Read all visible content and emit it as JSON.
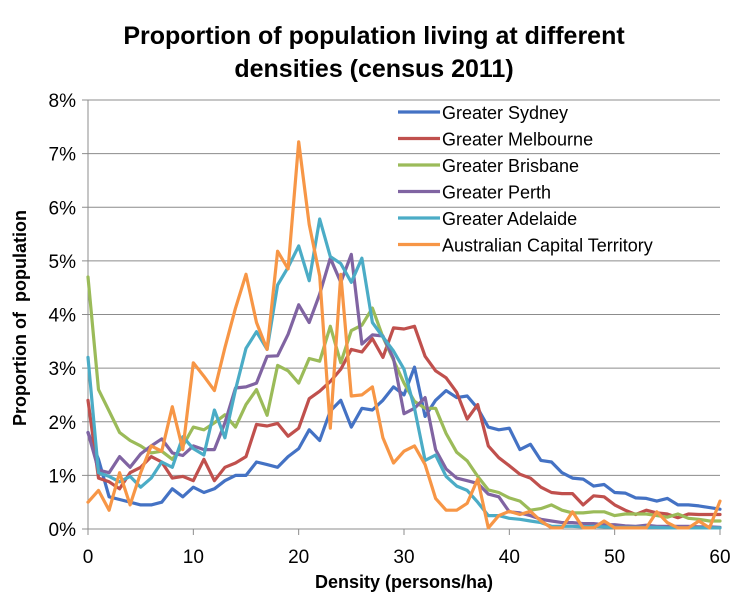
{
  "chart_data": {
    "type": "line",
    "title_lines": [
      "Proportion of population living at different",
      "densities (census 2011)"
    ],
    "title": "Proportion of population living at different densities (census 2011)",
    "xlabel": "Density (persons/ha)",
    "ylabel": "Proportion of  population",
    "xlim": [
      0,
      60
    ],
    "ylim": [
      0,
      0.08
    ],
    "x_ticks": [
      0,
      10,
      20,
      30,
      40,
      50,
      60
    ],
    "x_tick_labels": [
      "0",
      "10",
      "20",
      "30",
      "40",
      "50",
      "60"
    ],
    "y_ticks": [
      0,
      0.01,
      0.02,
      0.03,
      0.04,
      0.05,
      0.06,
      0.07,
      0.08
    ],
    "y_tick_labels": [
      "0%",
      "1%",
      "2%",
      "3%",
      "4%",
      "5%",
      "6%",
      "7%",
      "8%"
    ],
    "grid": "horizontal",
    "legend_position": "top-right",
    "x": [
      0,
      1,
      2,
      3,
      4,
      5,
      6,
      7,
      8,
      9,
      10,
      11,
      12,
      13,
      14,
      15,
      16,
      17,
      18,
      19,
      20,
      21,
      22,
      23,
      24,
      25,
      26,
      27,
      28,
      29,
      30,
      31,
      32,
      33,
      34,
      35,
      36,
      37,
      38,
      39,
      40,
      41,
      42,
      43,
      44,
      45,
      46,
      47,
      48,
      49,
      50,
      51,
      52,
      53,
      54,
      55,
      56,
      57,
      58,
      59,
      60
    ],
    "series": [
      {
        "name": "Greater Sydney",
        "color": "#4472C4",
        "values": [
          0.018,
          0.013,
          0.006,
          0.0055,
          0.005,
          0.0045,
          0.0045,
          0.005,
          0.0075,
          0.006,
          0.0078,
          0.0068,
          0.0075,
          0.009,
          0.01,
          0.01,
          0.0125,
          0.012,
          0.0115,
          0.0135,
          0.015,
          0.0185,
          0.0165,
          0.022,
          0.024,
          0.019,
          0.0225,
          0.0222,
          0.024,
          0.0265,
          0.025,
          0.0302,
          0.021,
          0.024,
          0.0258,
          0.0245,
          0.0248,
          0.0225,
          0.019,
          0.0185,
          0.0188,
          0.0148,
          0.0158,
          0.0128,
          0.0125,
          0.0105,
          0.0095,
          0.0093,
          0.008,
          0.0083,
          0.0068,
          0.0067,
          0.0058,
          0.0057,
          0.0052,
          0.0057,
          0.0045,
          0.0045,
          0.0043,
          0.004,
          0.0037
        ]
      },
      {
        "name": "Greater Melbourne",
        "color": "#C0504D",
        "values": [
          0.024,
          0.0095,
          0.0088,
          0.0075,
          0.0105,
          0.0115,
          0.0135,
          0.0125,
          0.0095,
          0.0098,
          0.009,
          0.013,
          0.009,
          0.0115,
          0.0123,
          0.0135,
          0.0195,
          0.0192,
          0.0197,
          0.0173,
          0.0188,
          0.0243,
          0.0257,
          0.0275,
          0.0298,
          0.0335,
          0.033,
          0.0355,
          0.032,
          0.0375,
          0.0373,
          0.0378,
          0.0322,
          0.0295,
          0.0282,
          0.0255,
          0.0205,
          0.0232,
          0.0155,
          0.0133,
          0.0118,
          0.0102,
          0.0095,
          0.0078,
          0.0068,
          0.0066,
          0.0066,
          0.0045,
          0.0062,
          0.006,
          0.0045,
          0.0035,
          0.0027,
          0.0035,
          0.003,
          0.0028,
          0.0021,
          0.0028,
          0.0027,
          0.0027,
          0.0027
        ]
      },
      {
        "name": "Greater Brisbane",
        "color": "#9BBB59",
        "values": [
          0.047,
          0.026,
          0.022,
          0.018,
          0.0165,
          0.0155,
          0.0142,
          0.0145,
          0.013,
          0.0155,
          0.019,
          0.0185,
          0.0198,
          0.0213,
          0.019,
          0.0232,
          0.026,
          0.0212,
          0.0305,
          0.0295,
          0.0272,
          0.0318,
          0.0313,
          0.0378,
          0.031,
          0.037,
          0.038,
          0.0412,
          0.0358,
          0.0315,
          0.0272,
          0.0238,
          0.0225,
          0.0225,
          0.0178,
          0.0143,
          0.0127,
          0.0098,
          0.0073,
          0.0068,
          0.0058,
          0.0052,
          0.0035,
          0.0038,
          0.0045,
          0.0035,
          0.003,
          0.003,
          0.0032,
          0.0032,
          0.0025,
          0.0028,
          0.0028,
          0.0028,
          0.0025,
          0.0022,
          0.0028,
          0.002,
          0.0018,
          0.0015,
          0.0015
        ]
      },
      {
        "name": "Greater Perth",
        "color": "#8064A2",
        "values": [
          0.018,
          0.011,
          0.0105,
          0.0135,
          0.0115,
          0.014,
          0.0155,
          0.0168,
          0.0142,
          0.0137,
          0.0155,
          0.0148,
          0.0148,
          0.0198,
          0.0263,
          0.0265,
          0.0272,
          0.0322,
          0.0323,
          0.0363,
          0.0418,
          0.0385,
          0.0438,
          0.0505,
          0.046,
          0.0512,
          0.0345,
          0.0362,
          0.036,
          0.0318,
          0.0215,
          0.0225,
          0.0245,
          0.0148,
          0.0112,
          0.0095,
          0.009,
          0.0085,
          0.0065,
          0.006,
          0.0032,
          0.003,
          0.0025,
          0.0018,
          0.0015,
          0.0012,
          0.0012,
          0.001,
          0.001,
          0.0008,
          0.0008,
          0.0006,
          0.0005,
          0.0007,
          0.0005,
          0.0005,
          0.0005,
          0.0005,
          0.0004,
          0.0004,
          0.0003
        ]
      },
      {
        "name": "Greater Adelaide",
        "color": "#4BACC6",
        "values": [
          0.032,
          0.0105,
          0.0098,
          0.0088,
          0.0098,
          0.0078,
          0.0095,
          0.0125,
          0.0115,
          0.0172,
          0.015,
          0.0138,
          0.0222,
          0.017,
          0.026,
          0.0337,
          0.0368,
          0.0335,
          0.0455,
          0.0488,
          0.0528,
          0.0463,
          0.0578,
          0.0508,
          0.0495,
          0.046,
          0.0505,
          0.0385,
          0.0358,
          0.0332,
          0.0298,
          0.0225,
          0.0128,
          0.0138,
          0.0098,
          0.008,
          0.0072,
          0.005,
          0.0025,
          0.0025,
          0.002,
          0.0018,
          0.0015,
          0.0012,
          0.0005,
          0.0005,
          0.0005,
          0.0004,
          0.0005,
          0.0004,
          0.0003,
          0.0003,
          0.0003,
          0.0003,
          0.0003,
          0.0002,
          0.0002,
          0.0002,
          0.0002,
          0.0002,
          0.0002
        ]
      },
      {
        "name": "Australian Capital Territory",
        "color": "#F79646",
        "values": [
          0.005,
          0.0072,
          0.0035,
          0.0105,
          0.0045,
          0.0105,
          0.0155,
          0.0145,
          0.0228,
          0.0148,
          0.031,
          0.0285,
          0.0258,
          0.0338,
          0.0412,
          0.0475,
          0.0385,
          0.0335,
          0.0518,
          0.0485,
          0.0722,
          0.0568,
          0.0472,
          0.0188,
          0.0475,
          0.0248,
          0.025,
          0.0265,
          0.017,
          0.0123,
          0.0145,
          0.0155,
          0.012,
          0.0057,
          0.0035,
          0.0035,
          0.0048,
          0.0093,
          0.0002,
          0.0025,
          0.0033,
          0.0027,
          0.0033,
          0.0015,
          0.0002,
          0.0002,
          0.0032,
          0.0002,
          0.0002,
          0.0015,
          0.0002,
          0.0002,
          0.0002,
          0.0002,
          0.0032,
          0.0012,
          0.0002,
          0.0002,
          0.0015,
          0.0002,
          0.0052
        ]
      }
    ]
  }
}
